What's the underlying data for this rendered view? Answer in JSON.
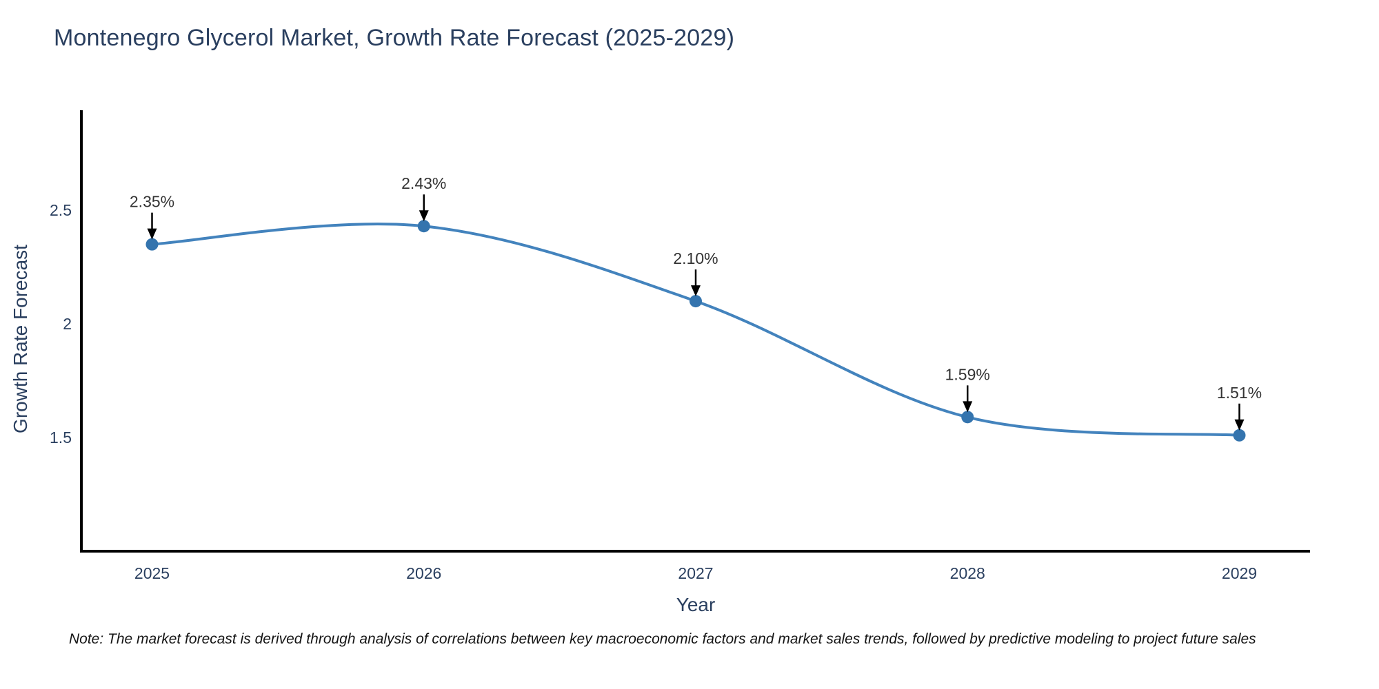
{
  "chart_data": {
    "type": "line",
    "title": "Montenegro Glycerol Market, Growth Rate Forecast (2025-2029)",
    "x": [
      2025,
      2026,
      2027,
      2028,
      2029
    ],
    "y": [
      2.35,
      2.43,
      2.1,
      1.59,
      1.51
    ],
    "point_labels": [
      "2.35%",
      "2.43%",
      "2.10%",
      "1.59%",
      "1.51%"
    ],
    "xticklabels": [
      "2025",
      "2026",
      "2027",
      "2028",
      "2029"
    ],
    "yticks": [
      1.5,
      2,
      2.5
    ],
    "yticklabels": [
      "1.5",
      "2",
      "2.5"
    ],
    "xlabel": "Year",
    "ylabel": "Growth Rate Forecast",
    "xlim": [
      2024.74,
      2029.26
    ],
    "ylim": [
      1.0,
      2.94
    ],
    "grid": false,
    "legend": false,
    "line_shape": "spline",
    "colors": {
      "line": "#4383bd",
      "marker": "#3474ae",
      "annotation_text": "#333333",
      "arrow": "#000000",
      "axis_line": "#000000",
      "tick_text": "#2a3f5f",
      "title_text": "#2a3f5f"
    },
    "note": "Note: The market forecast is derived through analysis of correlations between key macroeconomic factors and market sales trends, followed by predictive modeling to project future sales"
  }
}
